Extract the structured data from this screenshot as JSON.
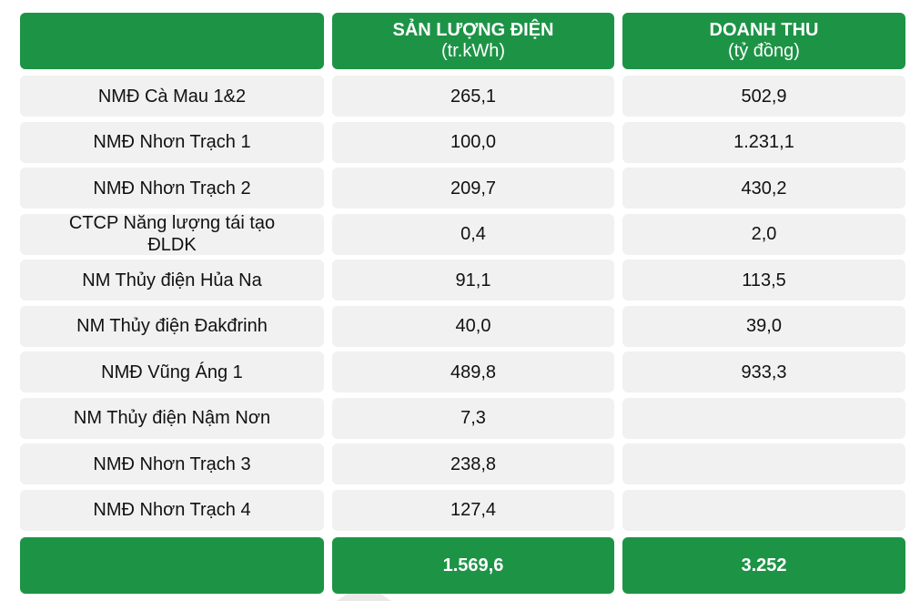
{
  "header": {
    "col1_title": "SẢN LƯỢNG ĐIỆN",
    "col1_unit": "(tr.kWh)",
    "col2_title": "DOANH THU",
    "col2_unit": "(tỷ đồng)"
  },
  "rows": [
    {
      "name": "NMĐ Cà Mau 1&2",
      "output": "265,1",
      "revenue": "502,9"
    },
    {
      "name": "NMĐ Nhơn Trạch 1",
      "output": "100,0",
      "revenue": "1.231,1"
    },
    {
      "name": "NMĐ Nhơn Trạch 2",
      "output": "209,7",
      "revenue": "430,2"
    },
    {
      "name": "CTCP Năng lượng tái tạo ĐLDK",
      "output": "0,4",
      "revenue": "2,0"
    },
    {
      "name": "NM Thủy điện Hủa Na",
      "output": "91,1",
      "revenue": "113,5"
    },
    {
      "name": "NM Thủy điện Đakđrinh",
      "output": "40,0",
      "revenue": "39,0"
    },
    {
      "name": "NMĐ Vũng Áng 1",
      "output": "489,8",
      "revenue": "933,3"
    },
    {
      "name": "NM Thủy điện Nậm Nơn",
      "output": "7,3",
      "revenue": ""
    },
    {
      "name": "NMĐ Nhơn Trạch 3",
      "output": "238,8",
      "revenue": ""
    },
    {
      "name": "NMĐ Nhơn Trạch 4",
      "output": "127,4",
      "revenue": ""
    }
  ],
  "total": {
    "label": "",
    "output": "1.569,6",
    "revenue": "3.252"
  },
  "colors": {
    "header_green": "#1d9346",
    "row_gray": "#f1f1f1"
  }
}
